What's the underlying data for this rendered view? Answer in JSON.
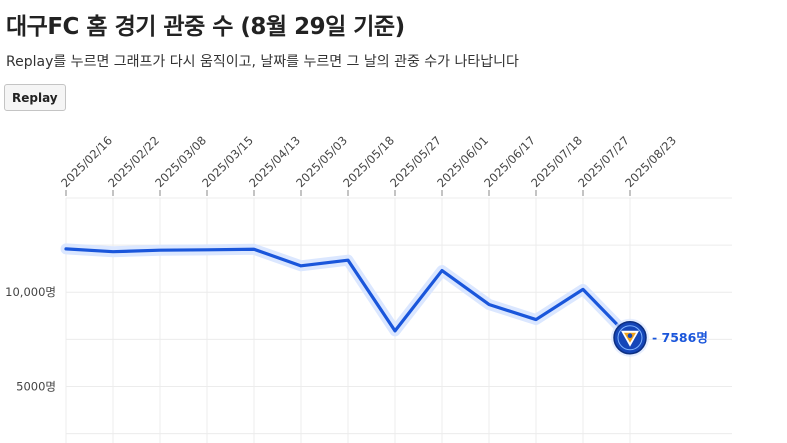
{
  "header": {
    "title": "대구FC 홈 경기 관중 수 (8월 29일 기준)",
    "subtitle": "Replay를 누르면 그래프가 다시 움직이고, 날짜를 누르면 그 날의 관중 수가 나타납니다",
    "replay_label": "Replay"
  },
  "colors": {
    "line": "#1a56db",
    "halo": "#dbe7ff",
    "grid": "#ececec",
    "label": "#1a56db"
  },
  "end_marker": {
    "icon": "daegu-fc-emblem-icon",
    "label": "7586명"
  },
  "chart_data": {
    "type": "line",
    "title": "대구FC 홈 경기 관중 수 (8월 29일 기준)",
    "xlabel": "",
    "ylabel": "",
    "x_tick_labels": [
      "2025/02/16",
      "2025/02/22",
      "2025/03/08",
      "2025/03/15",
      "2025/04/13",
      "2025/05/03",
      "2025/05/18",
      "2025/05/27",
      "2025/06/01",
      "2025/06/17",
      "2025/07/18",
      "2025/07/27",
      "2025/08/23"
    ],
    "y_ticks": [
      5000,
      10000
    ],
    "y_tick_labels": [
      "5000명",
      "10,000명"
    ],
    "ylim": [
      2000,
      15000
    ],
    "grid": true,
    "series": [
      {
        "values": [
          12300,
          12150,
          12230,
          12250,
          12280,
          11400,
          11700,
          7950,
          11150,
          9350,
          8550,
          10150,
          7586
        ]
      }
    ]
  }
}
